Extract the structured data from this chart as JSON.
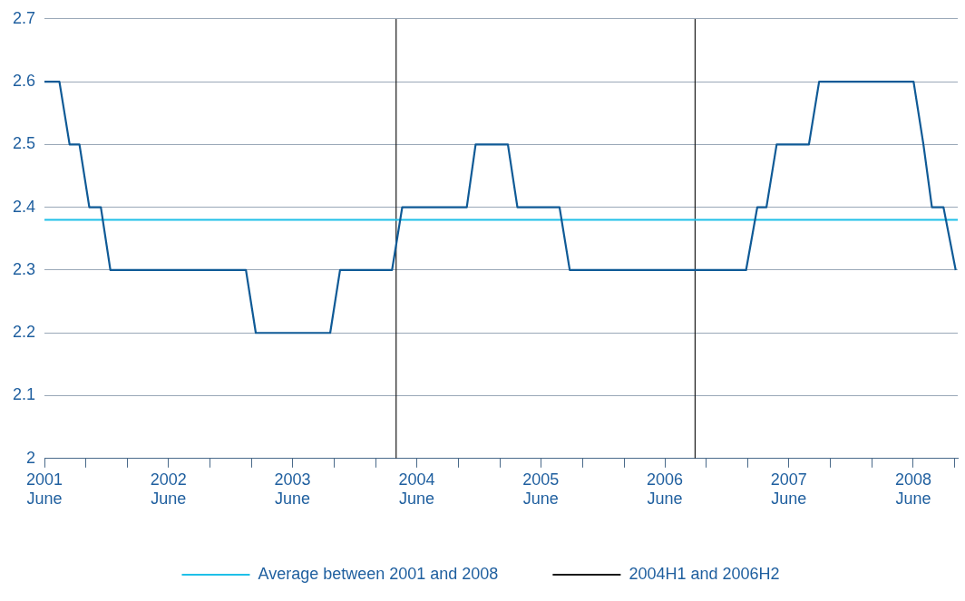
{
  "chart_data": {
    "type": "line",
    "x": [
      "2001-06-01",
      "2001-07-15",
      "2001-08-14",
      "2001-09-12",
      "2001-10-11",
      "2001-11-14",
      "2001-12-12",
      "2003-01-15",
      "2003-02-13",
      "2003-09-20",
      "2003-10-19",
      "2004-03-20",
      "2004-04-19",
      "2004-10-26",
      "2004-11-21",
      "2005-02-24",
      "2005-03-24",
      "2005-07-26",
      "2005-08-25",
      "2007-01-26",
      "2007-02-28",
      "2007-03-27",
      "2007-04-26",
      "2007-07-30",
      "2007-08-29",
      "2008-06-02",
      "2008-07-01",
      "2008-07-26",
      "2008-08-29",
      "2008-10-04"
    ],
    "series": [
      {
        "color": "#0f5a96",
        "values": [
          2.6,
          2.6,
          2.5,
          2.5,
          2.4,
          2.4,
          2.3,
          2.3,
          2.2,
          2.2,
          2.3,
          2.3,
          2.4,
          2.4,
          2.5,
          2.5,
          2.4,
          2.4,
          2.3,
          2.3,
          2.4,
          2.4,
          2.5,
          2.5,
          2.6,
          2.6,
          2.5,
          2.4,
          2.4,
          2.3
        ]
      }
    ],
    "xlim": [
      "2001-06-01",
      "2008-10-10"
    ],
    "xticks": [
      {
        "value": "2001-06-01",
        "label": "2001\nJune"
      },
      {
        "value": "2001-10-01",
        "label": null
      },
      {
        "value": "2002-02-01",
        "label": null
      },
      {
        "value": "2002-06-01",
        "label": "2002\nJune"
      },
      {
        "value": "2002-10-01",
        "label": null
      },
      {
        "value": "2003-02-01",
        "label": null
      },
      {
        "value": "2003-06-01",
        "label": "2003\nJune"
      },
      {
        "value": "2003-10-01",
        "label": null
      },
      {
        "value": "2004-02-01",
        "label": null
      },
      {
        "value": "2004-06-01",
        "label": "2004\nJune"
      },
      {
        "value": "2004-10-01",
        "label": null
      },
      {
        "value": "2005-02-01",
        "label": null
      },
      {
        "value": "2005-06-01",
        "label": "2005\nJune"
      },
      {
        "value": "2005-10-01",
        "label": null
      },
      {
        "value": "2006-02-01",
        "label": null
      },
      {
        "value": "2006-06-01",
        "label": "2006\nJune"
      },
      {
        "value": "2006-10-01",
        "label": null
      },
      {
        "value": "2007-02-01",
        "label": null
      },
      {
        "value": "2007-06-01",
        "label": "2007\nJune"
      },
      {
        "value": "2007-10-01",
        "label": null
      },
      {
        "value": "2008-02-01",
        "label": null
      },
      {
        "value": "2008-06-01",
        "label": "2008\nJune"
      },
      {
        "value": "2008-10-01",
        "label": null
      }
    ],
    "ylim": [
      2,
      2.7
    ],
    "yticks": [
      2,
      2.1,
      2.2,
      2.3,
      2.4,
      2.5,
      2.6,
      2.7
    ],
    "ref_lines": [
      {
        "axis": "y",
        "value": 2.38,
        "label": "Average between 2001 and 2008",
        "color": "#1fc0e8"
      },
      {
        "axis": "x",
        "value": "2004-04-01",
        "label": "2004H1 and 2006H2",
        "color": "#1a1a1a"
      },
      {
        "axis": "x",
        "value": "2006-08-29",
        "color": "#1a1a1a"
      }
    ],
    "grid": "y",
    "legend": "bottom",
    "marker": "none",
    "line_style": "solid"
  }
}
